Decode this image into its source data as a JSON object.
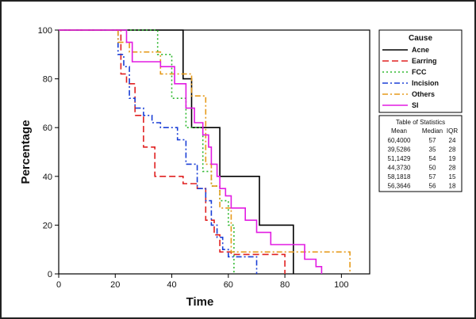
{
  "chart_data": {
    "type": "line",
    "step": true,
    "xlabel": "Time",
    "ylabel": "Percentage",
    "xlim": [
      0,
      110
    ],
    "ylim": [
      0,
      100
    ],
    "xticks": [
      0,
      20,
      40,
      60,
      80,
      100
    ],
    "yticks": [
      0,
      20,
      40,
      60,
      80,
      100
    ],
    "grid": false,
    "legend": {
      "title": "Cause",
      "position": "right",
      "items": [
        {
          "label": "Acne",
          "color": "#000000",
          "dash": "solid"
        },
        {
          "label": "Earring",
          "color": "#e02020",
          "dash": "long-dash"
        },
        {
          "label": "FCC",
          "color": "#2eb82e",
          "dash": "dot"
        },
        {
          "label": "Incision",
          "color": "#1a3fd6",
          "dash": "dash-dot"
        },
        {
          "label": "Others",
          "color": "#e69a1a",
          "dash": "dash-dot"
        },
        {
          "label": "SI",
          "color": "#e21be2",
          "dash": "solid"
        }
      ]
    },
    "series": [
      {
        "name": "Acne",
        "color": "#000000",
        "dash": "solid",
        "x": [
          0,
          44,
          44,
          47,
          47,
          57,
          57,
          71,
          71,
          83,
          83
        ],
        "y": [
          100,
          100,
          80,
          80,
          60,
          60,
          40,
          40,
          20,
          20,
          0
        ]
      },
      {
        "name": "Earring",
        "color": "#e02020",
        "dash": "long-dash",
        "x": [
          0,
          22,
          22,
          24,
          24,
          27,
          27,
          30,
          30,
          34,
          34,
          44,
          44,
          49,
          49,
          52,
          52,
          55,
          55,
          57,
          57,
          61,
          61,
          80,
          80
        ],
        "y": [
          100,
          100,
          82,
          82,
          78,
          78,
          65,
          65,
          52,
          52,
          40,
          40,
          37,
          37,
          35,
          35,
          22,
          22,
          16,
          16,
          9,
          9,
          8,
          8,
          0
        ]
      },
      {
        "name": "FCC",
        "color": "#2eb82e",
        "dash": "dot",
        "x": [
          0,
          23,
          23,
          35,
          35,
          40,
          40,
          45,
          45,
          51,
          51,
          54,
          54,
          57,
          57,
          60,
          60,
          62,
          62
        ],
        "y": [
          100,
          100,
          100,
          100,
          90,
          90,
          72,
          72,
          60,
          60,
          42,
          42,
          36,
          36,
          30,
          30,
          20,
          20,
          0
        ]
      },
      {
        "name": "Incision",
        "color": "#1a3fd6",
        "dash": "dash-dot",
        "x": [
          0,
          21,
          21,
          23,
          23,
          25,
          25,
          27,
          27,
          30,
          30,
          33,
          33,
          36,
          36,
          42,
          42,
          45,
          45,
          49,
          49,
          52,
          52,
          54,
          54,
          56,
          56,
          58,
          58,
          60,
          60,
          70,
          70
        ],
        "y": [
          100,
          100,
          90,
          90,
          85,
          85,
          72,
          72,
          68,
          68,
          65,
          65,
          62,
          62,
          60,
          60,
          55,
          55,
          45,
          45,
          35,
          35,
          30,
          30,
          20,
          20,
          15,
          15,
          10,
          10,
          7,
          7,
          0
        ]
      },
      {
        "name": "Others",
        "color": "#e69a1a",
        "dash": "dash-dot",
        "x": [
          0,
          21,
          21,
          25,
          25,
          36,
          36,
          47,
          47,
          52,
          52,
          54,
          54,
          57,
          57,
          61,
          61,
          62,
          62,
          103,
          103
        ],
        "y": [
          100,
          100,
          95,
          95,
          91,
          91,
          82,
          82,
          73,
          73,
          45,
          45,
          36,
          36,
          27,
          27,
          9,
          9,
          9,
          9,
          0
        ]
      },
      {
        "name": "SI",
        "color": "#e21be2",
        "dash": "solid",
        "x": [
          0,
          24,
          24,
          26,
          26,
          36,
          36,
          41,
          41,
          45,
          45,
          48,
          48,
          51,
          51,
          53,
          53,
          54,
          54,
          56,
          56,
          57,
          57,
          59,
          59,
          61,
          61,
          66,
          66,
          70,
          70,
          75,
          75,
          87,
          87,
          91,
          91,
          93,
          93
        ],
        "y": [
          100,
          100,
          95,
          95,
          87,
          87,
          85,
          85,
          78,
          78,
          68,
          68,
          62,
          62,
          57,
          57,
          52,
          52,
          45,
          45,
          40,
          40,
          35,
          35,
          32,
          32,
          27,
          27,
          22,
          22,
          17,
          17,
          12,
          12,
          6,
          6,
          3,
          3,
          0
        ]
      }
    ],
    "stats_table": {
      "title": "Table of Statistics",
      "headers": [
        "Mean",
        "Median",
        "IQR"
      ],
      "rows": [
        [
          "60,4000",
          "57",
          "24"
        ],
        [
          "39,5286",
          "35",
          "28"
        ],
        [
          "51,1429",
          "54",
          "19"
        ],
        [
          "44,3730",
          "50",
          "28"
        ],
        [
          "58,1818",
          "57",
          "15"
        ],
        [
          "56,3646",
          "56",
          "18"
        ]
      ]
    }
  }
}
